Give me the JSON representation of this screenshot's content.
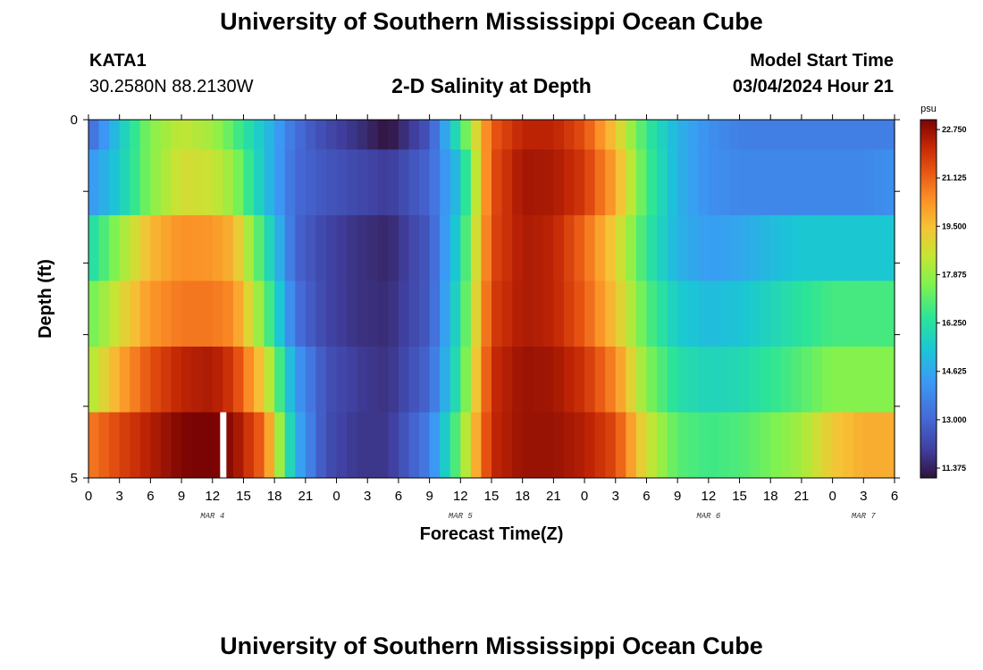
{
  "header": {
    "title": "University of Southern Mississippi Ocean Cube",
    "station_id": "KATA1",
    "station_coords": "30.2580N  88.2130W",
    "subtitle": "2-D Salinity at Depth",
    "run_label": "Model Start Time",
    "run_time": "03/04/2024 Hour 21"
  },
  "footer": {
    "title": "University of Southern Mississippi Ocean Cube"
  },
  "chart_data": {
    "type": "heatmap",
    "xlabel": "Forecast Time(Z)",
    "ylabel": "Depth (ft)",
    "x_start_hour": 0,
    "x_step_hours": 3,
    "x_tick_labels": [
      "0",
      "3",
      "6",
      "9",
      "12",
      "15",
      "18",
      "21",
      "0",
      "3",
      "6",
      "9",
      "12",
      "15",
      "18",
      "21",
      "0",
      "3",
      "6",
      "9",
      "12",
      "15",
      "18",
      "21",
      "0",
      "3",
      "6"
    ],
    "day_labels": [
      {
        "label": "MAR 4",
        "hour": 12
      },
      {
        "label": "MAR 5",
        "hour": 36
      },
      {
        "label": "MAR 6",
        "hour": 60
      },
      {
        "label": "MAR 7",
        "hour": 75
      }
    ],
    "y_tick_labels": [
      {
        "label": "0",
        "depth": 0
      },
      {
        "label": "5",
        "depth": 5
      }
    ],
    "ylim": [
      0,
      5
    ],
    "xlim_hours": [
      0,
      78
    ],
    "depth_rows": [
      0,
      1,
      2,
      3,
      4,
      5
    ],
    "colorbar": {
      "unit": "psu",
      "min": 11.375,
      "max": 22.75,
      "tick_labels": [
        "22.750",
        "21.125",
        "19.500",
        "17.875",
        "16.250",
        "14.625",
        "13.000",
        "11.375"
      ],
      "colormap": "turbo"
    },
    "key_times_hours": [
      0,
      3,
      6,
      9,
      12,
      14,
      17,
      20,
      23,
      26,
      29,
      33,
      36,
      39,
      42,
      45,
      48,
      51,
      54,
      57,
      60,
      63,
      66,
      69,
      72,
      75,
      78
    ],
    "series": [
      {
        "depth": 0,
        "values": [
          13.2,
          15.5,
          17.6,
          18.4,
          18.0,
          17.0,
          15.4,
          13.4,
          12.5,
          12.0,
          11.4,
          12.8,
          16.6,
          21.0,
          22.0,
          22.0,
          21.2,
          19.2,
          16.6,
          15.0,
          14.2,
          13.8,
          13.8,
          13.8,
          13.8,
          13.8,
          13.8
        ]
      },
      {
        "depth": 1,
        "values": [
          14.3,
          15.6,
          17.6,
          18.7,
          18.5,
          17.8,
          15.4,
          13.3,
          12.8,
          12.5,
          12.2,
          13.2,
          15.5,
          21.2,
          22.3,
          22.2,
          21.6,
          19.8,
          16.8,
          15.0,
          14.2,
          14.0,
          14.0,
          14.0,
          14.0,
          14.0,
          14.2
        ]
      },
      {
        "depth": 2,
        "values": [
          16.0,
          17.8,
          19.5,
          20.2,
          20.1,
          19.6,
          16.5,
          13.2,
          12.4,
          12.0,
          11.8,
          12.9,
          16.0,
          21.3,
          22.2,
          22.0,
          20.8,
          19.0,
          16.5,
          15.0,
          14.5,
          14.7,
          15.2,
          15.5,
          15.5,
          15.5,
          15.5
        ]
      },
      {
        "depth": 3,
        "values": [
          17.2,
          18.7,
          20.1,
          20.6,
          20.6,
          20.3,
          17.4,
          13.5,
          12.4,
          12.0,
          11.9,
          12.9,
          16.3,
          21.5,
          22.2,
          22.0,
          21.0,
          19.3,
          17.0,
          15.6,
          15.2,
          15.4,
          15.9,
          16.4,
          16.8,
          16.8,
          16.8
        ]
      },
      {
        "depth": 4,
        "values": [
          18.0,
          19.8,
          21.2,
          22.0,
          22.2,
          21.6,
          19.0,
          14.5,
          12.7,
          12.2,
          12.0,
          13.2,
          16.6,
          21.8,
          22.4,
          22.3,
          21.7,
          20.3,
          17.6,
          16.2,
          15.9,
          16.0,
          16.5,
          17.0,
          17.6,
          17.6,
          17.6
        ]
      },
      {
        "depth": 5,
        "values": [
          20.5,
          21.4,
          22.1,
          22.7,
          22.8,
          22.5,
          20.8,
          15.0,
          12.6,
          12.1,
          12.1,
          13.8,
          17.5,
          21.9,
          22.4,
          22.4,
          22.1,
          21.3,
          18.6,
          17.0,
          16.7,
          16.9,
          17.4,
          18.0,
          19.2,
          19.7,
          19.7
        ]
      }
    ],
    "marker": {
      "depth": 5,
      "hour": 13
    }
  }
}
